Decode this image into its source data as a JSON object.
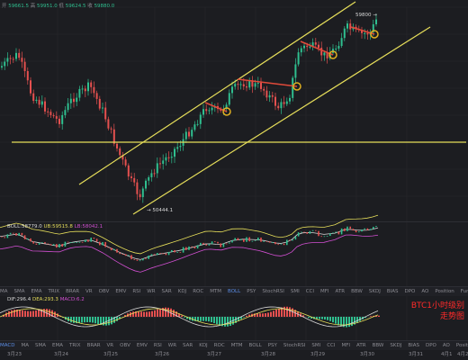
{
  "header": {
    "o_label": "开",
    "o_value": "59661.5",
    "h_label": "高",
    "h_value": "59951.0",
    "l_label": "低",
    "l_value": "59624.5",
    "c_label": "收",
    "c_value": "59880.0"
  },
  "annotations": {
    "high_price": "59800",
    "low_price": "50444.1"
  },
  "boll": {
    "label": "BOLL:58779.0",
    "ub": "UB:59515.8",
    "lb": "LB:58042.1"
  },
  "macd": {
    "dif": "DIF:296.4",
    "dea": "DEA:293.3",
    "macd": "MACD:6.2"
  },
  "indicator_tabs_1": [
    "MA",
    "SMA",
    "EMA",
    "TRIX",
    "BRAR",
    "VR",
    "OBV",
    "EMV",
    "RSI",
    "WR",
    "SAR",
    "KDJ",
    "ROC",
    "MTM",
    "BOLL",
    "PSY",
    "StochRSI",
    "SMI",
    "CCI",
    "MFI",
    "ATR",
    "BBW",
    "SKDJ",
    "BIAS",
    "DPO",
    "AO",
    "Position",
    "Fundflow"
  ],
  "active_tab_1": "BOLL",
  "indicator_tabs_2": [
    "MACD",
    "MA",
    "SMA",
    "EMA",
    "TRIX",
    "BRAR",
    "VR",
    "OBV",
    "EMV",
    "RSI",
    "WR",
    "SAR",
    "KDJ",
    "ROC",
    "MTM",
    "BOLL",
    "PSY",
    "StochRSI",
    "SMI",
    "CCI",
    "MFI",
    "ATR",
    "BBW",
    "SKDJ",
    "BIAS",
    "DPO",
    "AO",
    "Position",
    "Fundflow"
  ],
  "active_tab_2": "MACD",
  "dates": [
    "3月23",
    "3月24",
    "3月25",
    "3月26",
    "3月27",
    "3月28",
    "3月29",
    "3月30",
    "3月31",
    "4月1",
    "4月2"
  ],
  "side_text": [
    "BTC1小时级别",
    "走势图"
  ],
  "colors": {
    "up": "#2fbf8f",
    "down": "#e5504f",
    "channel": "#e6de5a",
    "resistance": "#e04a3a",
    "marker": "#e0b020",
    "tab_active": "#5b8de6",
    "side_text": "#ff2a2a"
  }
}
